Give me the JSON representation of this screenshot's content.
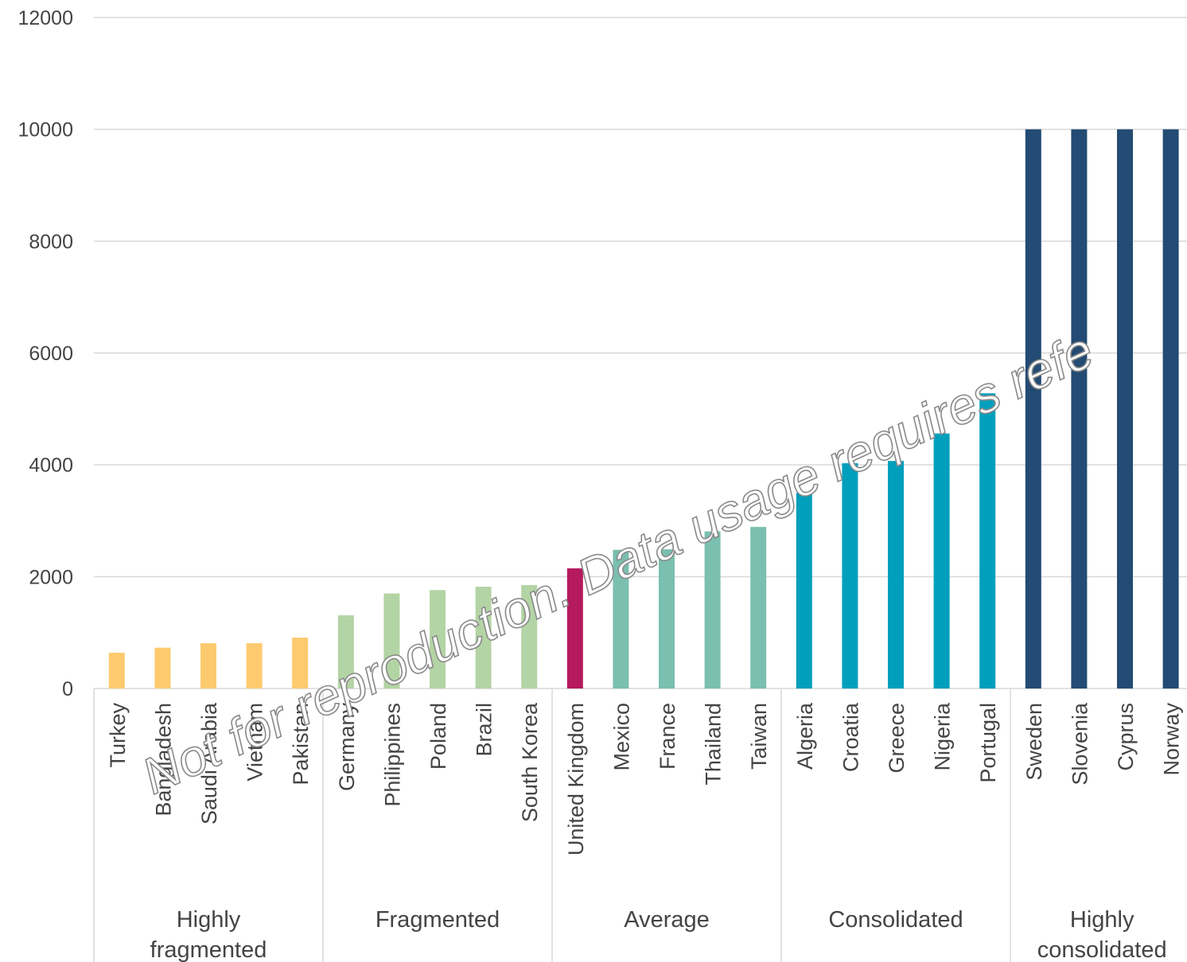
{
  "chart_data": {
    "type": "bar",
    "categories": [
      "Turkey",
      "Bangladesh",
      "Saudi Arabia",
      "Vietnam",
      "Pakistan",
      "Germany",
      "Philippines",
      "Poland",
      "Brazil",
      "South Korea",
      "United Kingdom",
      "Mexico",
      "France",
      "Thailand",
      "Taiwan",
      "Algeria",
      "Croatia",
      "Greece",
      "Nigeria",
      "Portugal",
      "Sweden",
      "Slovenia",
      "Cyprus",
      "Norway"
    ],
    "values": [
      640,
      730,
      810,
      810,
      910,
      1310,
      1700,
      1760,
      1820,
      1850,
      2150,
      2480,
      2490,
      2810,
      2890,
      3500,
      4030,
      4070,
      4560,
      5280,
      10000,
      10000,
      10000,
      10000
    ],
    "groups": [
      {
        "label": "Highly fragmented",
        "count": 5,
        "color": "#FDCB6E"
      },
      {
        "label": "Fragmented",
        "count": 5,
        "color": "#B3D4A5"
      },
      {
        "label": "Average",
        "count": 5,
        "color": "#7ABFAF"
      },
      {
        "label": "Consolidated",
        "count": 5,
        "color": "#009FBC"
      },
      {
        "label": "Highly consolidated",
        "count": 4,
        "color": "#234B73"
      }
    ],
    "highlight": {
      "category": "United Kingdom",
      "color": "#B5195E"
    },
    "yticks": [
      "0",
      "2000",
      "4000",
      "6000",
      "8000",
      "10000",
      "12000"
    ],
    "ylim": [
      0,
      12000
    ],
    "grid": true,
    "title": "",
    "xlabel": "",
    "ylabel": ""
  },
  "watermark": "Not for reproduction. Data usage requires refe"
}
